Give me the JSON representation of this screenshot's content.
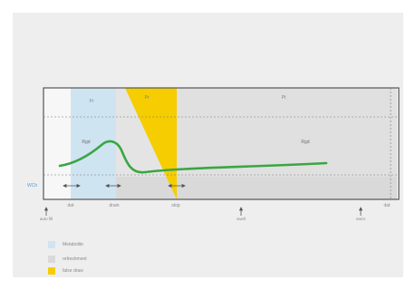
{
  "phases": {
    "phase1": "Pr",
    "phase2": "Pr",
    "phase3": "Pt"
  },
  "curve_labels": {
    "left": "Rgd",
    "right": "Rgd"
  },
  "left_label": "WCh",
  "tick_labels": {
    "start": "dat",
    "drain": "drain",
    "stop": "stop",
    "end": "dat"
  },
  "arrow_labels": {
    "auto_fill": "auto fill",
    "swell": "swell",
    "swim": "swim"
  },
  "legend": [
    {
      "label": "Metabolite",
      "color": "#cfe4f1"
    },
    {
      "label": "refreshment",
      "color": "#d9d9d9"
    },
    {
      "label": "false draw",
      "color": "#f5cd00"
    }
  ],
  "colors": {
    "curve": "#3aa642",
    "yellow": "#f5cd00",
    "blue": "#cfe4f1",
    "gray_band": "#d9d9d9",
    "label_blue": "#5b9bd5"
  }
}
